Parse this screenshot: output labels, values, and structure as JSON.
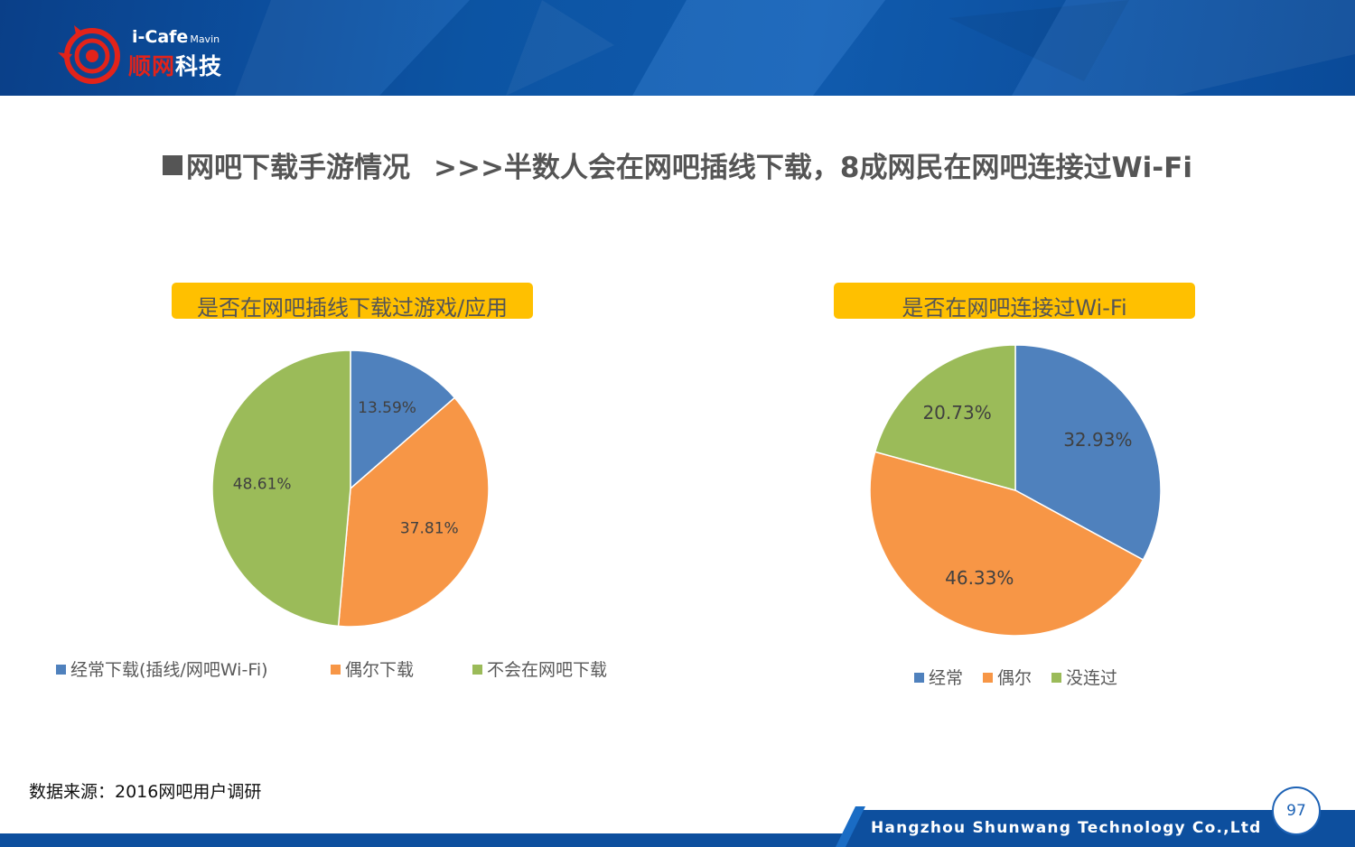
{
  "header": {
    "logo": {
      "text_top": "i-Cafe",
      "text_top_small": "Mavin",
      "text_cn_red": "顺网",
      "text_cn_white": "科技"
    }
  },
  "title": {
    "main": "网吧下载手游情况",
    "sub": ">>>半数人会在网吧插线下载，8成网民在网吧连接过Wi-Fi"
  },
  "colors": {
    "blue": "#4f81bd",
    "orange": "#f79646",
    "green": "#9bbb59",
    "label_bg": "#ffc000",
    "header": "#0d5aae"
  },
  "chart_data": [
    {
      "type": "pie",
      "title": "是否在网吧插线下载过游戏/应用",
      "categories": [
        "经常下载(插线/网吧Wi-Fi)",
        "偶尔下载",
        "不会在网吧下载"
      ],
      "values": [
        13.59,
        37.81,
        48.61
      ],
      "labels": [
        "13.59%",
        "37.81%",
        "48.61%"
      ],
      "colors": [
        "#4f81bd",
        "#f79646",
        "#9bbb59"
      ],
      "legend": "bottom"
    },
    {
      "type": "pie",
      "title": "是否在网吧连接过Wi-Fi",
      "categories": [
        "经常",
        "偶尔",
        "没连过"
      ],
      "values": [
        32.93,
        46.33,
        20.73
      ],
      "labels": [
        "32.93%",
        "46.33%",
        "20.73%"
      ],
      "colors": [
        "#4f81bd",
        "#f79646",
        "#9bbb59"
      ],
      "legend": "bottom"
    }
  ],
  "source": "数据来源：2016网吧用户调研",
  "footer": {
    "company": "Hangzhou Shunwang Technology Co.,Ltd",
    "page": "97"
  }
}
